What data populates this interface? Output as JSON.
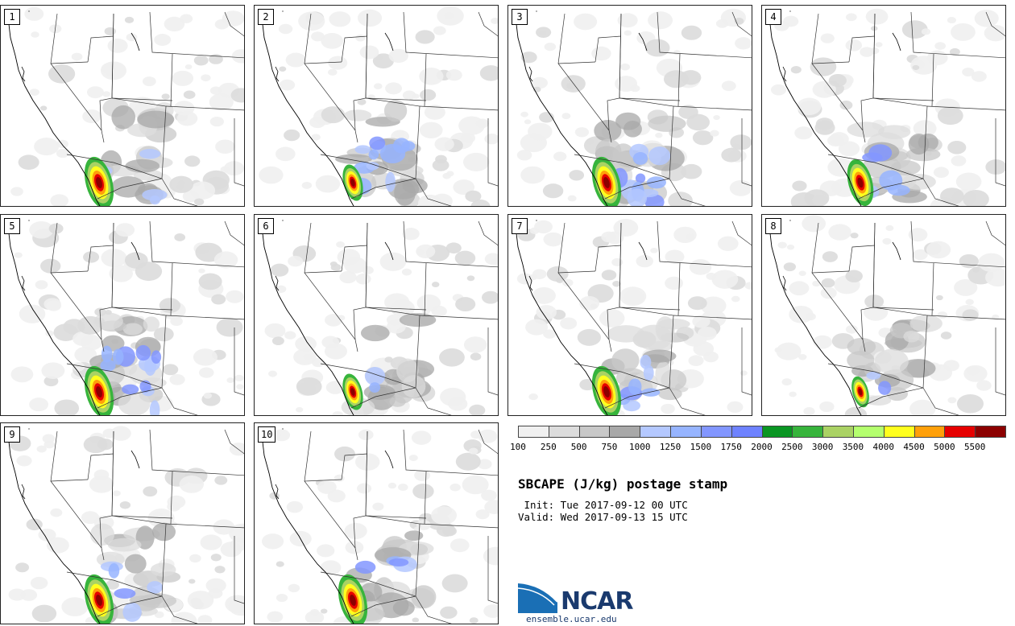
{
  "members": [
    {
      "label": "1",
      "core": 1.0,
      "blue": 0.3
    },
    {
      "label": "2",
      "core": 0.7,
      "blue": 1.0
    },
    {
      "label": "3",
      "core": 1.0,
      "blue": 0.9
    },
    {
      "label": "4",
      "core": 0.9,
      "blue": 0.4
    },
    {
      "label": "5",
      "core": 1.0,
      "blue": 1.0
    },
    {
      "label": "6",
      "core": 0.7,
      "blue": 0.2
    },
    {
      "label": "7",
      "core": 1.0,
      "blue": 0.6
    },
    {
      "label": "8",
      "core": 0.6,
      "blue": 0.2
    },
    {
      "label": "9",
      "core": 1.0,
      "blue": 0.4
    },
    {
      "label": "10",
      "core": 1.0,
      "blue": 0.3
    }
  ],
  "colorbar": {
    "colors": [
      "#f0f0f0",
      "#dcdcdc",
      "#c8c8c8",
      "#a8a8a8",
      "#b4c8ff",
      "#96b4ff",
      "#8296ff",
      "#6e82ff",
      "#0a9623",
      "#37b43c",
      "#aad264",
      "#b4ff6e",
      "#ffff1e",
      "#ffa00a",
      "#e60000",
      "#8c0000"
    ],
    "ticks": [
      "100",
      "250",
      "500",
      "750",
      "1000",
      "1250",
      "1500",
      "1750",
      "2000",
      "2500",
      "3000",
      "3500",
      "4000",
      "4500",
      "5000",
      "5500"
    ]
  },
  "title": "SBCAPE (J/kg) postage stamp",
  "init_text": " Init: Tue 2017-09-12 00 UTC",
  "valid_text": "Valid: Wed 2017-09-13 15 UTC",
  "logo": {
    "name": "NCAR",
    "url": "ensemble.ucar.edu",
    "color": "#1a3a6e"
  }
}
